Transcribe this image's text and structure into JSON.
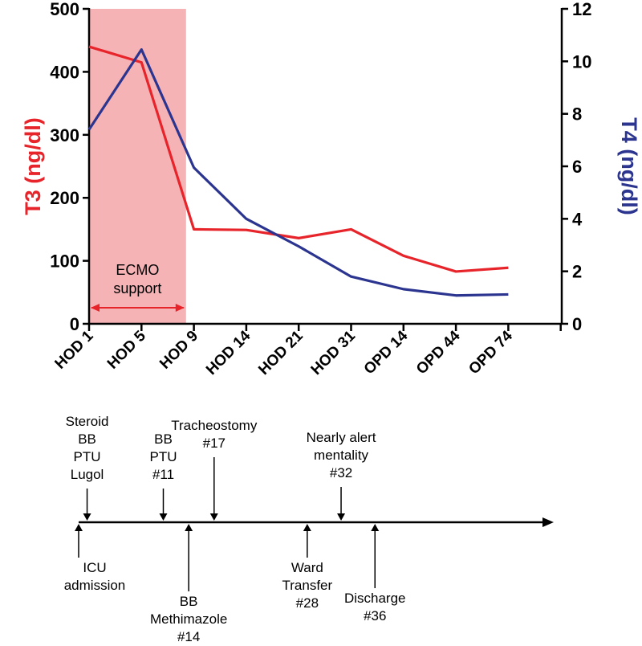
{
  "chart_data": {
    "type": "line",
    "categories": [
      "HOD 1",
      "HOD 5",
      "HOD 9",
      "HOD 14",
      "HOD 21",
      "HOD 31",
      "OPD 14",
      "OPD 44",
      "OPD 74"
    ],
    "series": [
      {
        "name": "T3",
        "axis": "left",
        "color": "#e8242b",
        "values": [
          440,
          415,
          150,
          149,
          136,
          150,
          108,
          83,
          89
        ]
      },
      {
        "name": "T4",
        "axis": "right",
        "color": "#2b3590",
        "values": [
          7.4,
          10.45,
          5.95,
          4.0,
          2.95,
          1.8,
          1.32,
          1.08,
          1.12
        ]
      }
    ],
    "y_left": {
      "label": "T3 (ng/dl)",
      "ylim": [
        0,
        500
      ],
      "ticks": [
        "0",
        "100",
        "200",
        "300",
        "400",
        "500"
      ],
      "color": "#e8242b"
    },
    "y_right": {
      "label": "T4 (ng/dl)",
      "ylim": [
        0,
        12
      ],
      "ticks": [
        "0",
        "2",
        "4",
        "6",
        "8",
        "10",
        "12"
      ],
      "color": "#2b3590"
    },
    "shaded_region": {
      "label_line1": "ECMO",
      "label_line2": "support",
      "from_category": 0,
      "to_category": 1.85,
      "color": "#f6b3b6"
    }
  },
  "timeline": {
    "above": [
      {
        "day": 2,
        "lines": [
          "Steroid",
          "BB",
          "PTU",
          "Lugol"
        ]
      },
      {
        "day": 11,
        "lines": [
          "BB",
          "PTU",
          "#11"
        ]
      },
      {
        "day": 17,
        "lines": [
          "Tracheostomy",
          "#17"
        ]
      },
      {
        "day": 32,
        "lines": [
          "Nearly alert",
          "mentality",
          "#32"
        ]
      }
    ],
    "below": [
      {
        "day": 1,
        "lines": [
          "ICU",
          "admission"
        ]
      },
      {
        "day": 14,
        "lines": [
          "BB",
          "Methimazole",
          "#14"
        ]
      },
      {
        "day": 28,
        "lines": [
          "Ward",
          "Transfer",
          "#28"
        ]
      },
      {
        "day": 36,
        "lines": [
          "Discharge",
          "#36"
        ]
      }
    ]
  }
}
